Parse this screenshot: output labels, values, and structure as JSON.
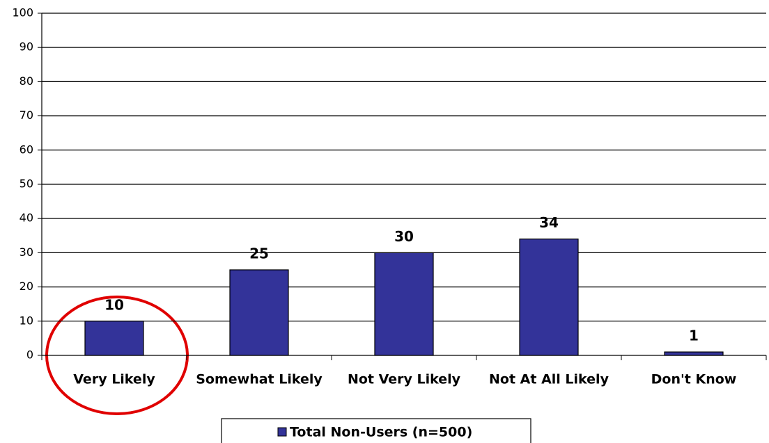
{
  "chart_data": {
    "type": "bar",
    "categories": [
      "Very Likely",
      "Somewhat Likely",
      "Not Very Likely",
      "Not At All Likely",
      "Don't Know"
    ],
    "series": [
      {
        "name": "Total Non-Users (n=500)",
        "color": "#333399",
        "values": [
          10,
          25,
          30,
          34,
          1
        ]
      }
    ],
    "ylim": [
      0,
      100
    ],
    "yticks": [
      0,
      10,
      20,
      30,
      40,
      50,
      60,
      70,
      80,
      90,
      100
    ],
    "grid": true,
    "legend": "bottom"
  }
}
